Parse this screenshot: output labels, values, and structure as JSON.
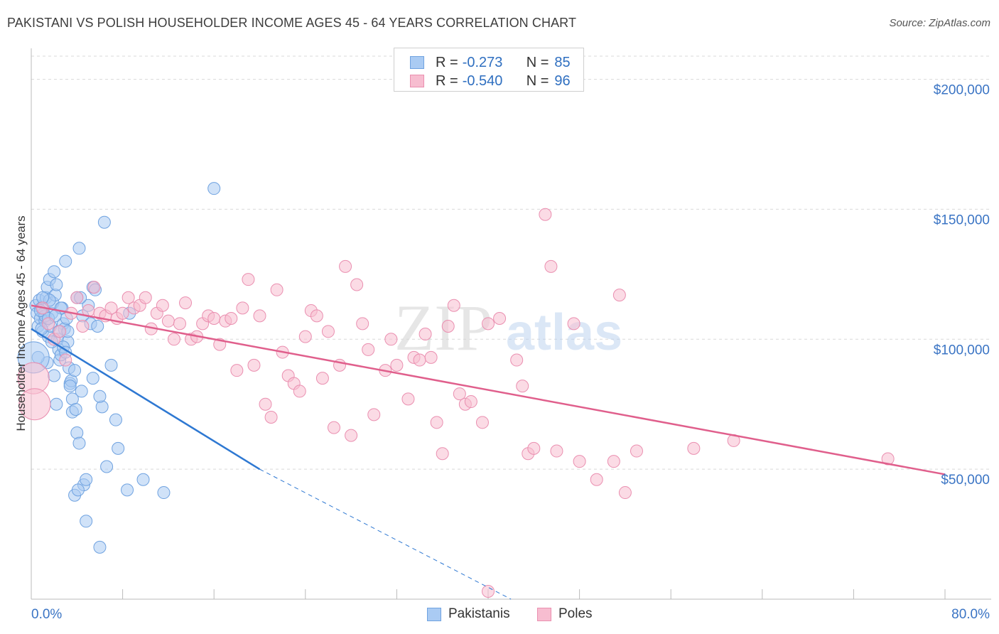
{
  "title": "PAKISTANI VS POLISH HOUSEHOLDER INCOME AGES 45 - 64 YEARS CORRELATION CHART",
  "source": "Source: ZipAtlas.com",
  "watermark": {
    "zip": "ZIP",
    "atlas": "atlas"
  },
  "legend": {
    "rows": [
      {
        "r_label": "R =",
        "r_value": "-0.273",
        "n_label": "N =",
        "n_value": "85",
        "color": "#aacbf3",
        "border": "#6fa2e0"
      },
      {
        "r_label": "R =",
        "r_value": "-0.540",
        "n_label": "N =",
        "n_value": "96",
        "color": "#f7bdd0",
        "border": "#ea8fb0"
      }
    ]
  },
  "bottom_legend": [
    "Pakistanis",
    "Poles"
  ],
  "chart_data": {
    "type": "scatter",
    "xlabel": "",
    "ylabel": "Householder Income Ages 45 - 64 years",
    "xlim": [
      0,
      80
    ],
    "ylim": [
      0,
      210000
    ],
    "x_tick_labels": [
      {
        "value": 0,
        "label": "0.0%"
      },
      {
        "value": 80,
        "label": "80.0%"
      }
    ],
    "y_tick_labels": [
      {
        "value": 50000,
        "label": "$50,000"
      },
      {
        "value": 100000,
        "label": "$100,000"
      },
      {
        "value": 150000,
        "label": "$150,000"
      },
      {
        "value": 200000,
        "label": "$200,000"
      }
    ],
    "series": [
      {
        "name": "Pakistanis",
        "color": "#aacbf3",
        "stroke": "#6fa2e0",
        "trend_color": "#2e78d2",
        "trend": {
          "x0": 0,
          "y0": 104000,
          "x1": 20,
          "y1": 50000,
          "dash_to_x": 42,
          "dash_to_y": 0
        },
        "points": [
          [
            0.4,
            113000
          ],
          [
            0.5,
            110000
          ],
          [
            0.6,
            105000
          ],
          [
            0.7,
            115000
          ],
          [
            0.8,
            108000
          ],
          [
            0.9,
            112000
          ],
          [
            1.0,
            103000
          ],
          [
            1.1,
            110000
          ],
          [
            1.2,
            107000
          ],
          [
            1.3,
            116000
          ],
          [
            1.4,
            120000
          ],
          [
            1.5,
            101000
          ],
          [
            1.6,
            123000
          ],
          [
            1.7,
            105000
          ],
          [
            1.8,
            110000
          ],
          [
            1.9,
            114000
          ],
          [
            2.0,
            126000
          ],
          [
            2.1,
            117000
          ],
          [
            2.2,
            121000
          ],
          [
            2.3,
            100000
          ],
          [
            2.4,
            96000
          ],
          [
            2.5,
            92000
          ],
          [
            2.6,
            94000
          ],
          [
            2.7,
            112000
          ],
          [
            2.8,
            106000
          ],
          [
            2.9,
            104000
          ],
          [
            3.0,
            130000
          ],
          [
            3.1,
            108000
          ],
          [
            3.2,
            99000
          ],
          [
            3.3,
            89000
          ],
          [
            3.4,
            83000
          ],
          [
            3.5,
            84000
          ],
          [
            3.6,
            72000
          ],
          [
            3.8,
            88000
          ],
          [
            4.0,
            116000
          ],
          [
            4.2,
            135000
          ],
          [
            4.4,
            80000
          ],
          [
            4.5,
            109000
          ],
          [
            4.6,
            44000
          ],
          [
            4.8,
            46000
          ],
          [
            5.0,
            113000
          ],
          [
            5.2,
            106000
          ],
          [
            5.4,
            120000
          ],
          [
            5.6,
            119000
          ],
          [
            5.8,
            105000
          ],
          [
            6.0,
            20000
          ],
          [
            6.2,
            74000
          ],
          [
            6.4,
            145000
          ],
          [
            6.6,
            51000
          ],
          [
            7.0,
            90000
          ],
          [
            7.4,
            69000
          ],
          [
            7.6,
            58000
          ],
          [
            8.4,
            42000
          ],
          [
            8.6,
            110000
          ],
          [
            9.8,
            46000
          ],
          [
            11.6,
            41000
          ],
          [
            16.0,
            158000
          ],
          [
            4.0,
            64000
          ],
          [
            4.2,
            60000
          ],
          [
            3.6,
            77000
          ],
          [
            3.8,
            40000
          ],
          [
            4.1,
            42000
          ],
          [
            4.8,
            30000
          ],
          [
            2.8,
            97000
          ],
          [
            2.2,
            75000
          ],
          [
            1.8,
            99000
          ],
          [
            1.2,
            109000
          ],
          [
            0.9,
            104000
          ],
          [
            1.6,
            115000
          ],
          [
            2.4,
            103000
          ],
          [
            3.0,
            95000
          ],
          [
            3.4,
            82000
          ],
          [
            5.4,
            85000
          ],
          [
            6.0,
            78000
          ],
          [
            2.0,
            86000
          ],
          [
            1.4,
            91000
          ],
          [
            2.6,
            112000
          ],
          [
            3.2,
            103000
          ],
          [
            0.8,
            111000
          ],
          [
            1.0,
            116000
          ],
          [
            1.5,
            108000
          ],
          [
            2.1,
            109000
          ],
          [
            3.9,
            73000
          ],
          [
            4.3,
            116000
          ],
          [
            0.6,
            93000
          ]
        ],
        "large_points": [
          [
            0.2,
            93000
          ]
        ]
      },
      {
        "name": "Poles",
        "color": "#f7bdd0",
        "stroke": "#ea8fb0",
        "trend_color": "#e05f8c",
        "trend": {
          "x0": 0,
          "y0": 113000,
          "x1": 80,
          "y1": 48000
        },
        "points": [
          [
            1.0,
            112000
          ],
          [
            1.5,
            106000
          ],
          [
            2.0,
            100000
          ],
          [
            2.5,
            103000
          ],
          [
            3.0,
            92000
          ],
          [
            3.5,
            110000
          ],
          [
            4.0,
            116000
          ],
          [
            4.5,
            105000
          ],
          [
            5.0,
            111000
          ],
          [
            5.5,
            120000
          ],
          [
            6.0,
            110000
          ],
          [
            6.5,
            109000
          ],
          [
            7.0,
            112000
          ],
          [
            7.5,
            108000
          ],
          [
            8.0,
            110000
          ],
          [
            8.5,
            116000
          ],
          [
            9.0,
            112000
          ],
          [
            9.5,
            113000
          ],
          [
            10.0,
            116000
          ],
          [
            10.5,
            104000
          ],
          [
            11.0,
            110000
          ],
          [
            11.5,
            113000
          ],
          [
            12.0,
            107000
          ],
          [
            12.5,
            100000
          ],
          [
            13.0,
            106000
          ],
          [
            13.5,
            114000
          ],
          [
            14.0,
            100000
          ],
          [
            14.5,
            101000
          ],
          [
            15.0,
            106000
          ],
          [
            15.5,
            109000
          ],
          [
            16.0,
            108000
          ],
          [
            16.5,
            98000
          ],
          [
            17.0,
            107000
          ],
          [
            17.5,
            108000
          ],
          [
            18.0,
            88000
          ],
          [
            18.5,
            112000
          ],
          [
            19.0,
            123000
          ],
          [
            19.5,
            90000
          ],
          [
            20.0,
            109000
          ],
          [
            20.5,
            75000
          ],
          [
            21.0,
            70000
          ],
          [
            21.5,
            119000
          ],
          [
            22.0,
            95000
          ],
          [
            22.5,
            86000
          ],
          [
            23.0,
            83000
          ],
          [
            23.5,
            80000
          ],
          [
            24.0,
            101000
          ],
          [
            24.5,
            111000
          ],
          [
            25.0,
            109000
          ],
          [
            25.5,
            85000
          ],
          [
            26.0,
            103000
          ],
          [
            26.5,
            66000
          ],
          [
            27.0,
            90000
          ],
          [
            27.5,
            128000
          ],
          [
            28.0,
            63000
          ],
          [
            28.5,
            121000
          ],
          [
            29.0,
            106000
          ],
          [
            29.5,
            96000
          ],
          [
            30.0,
            71000
          ],
          [
            31.0,
            88000
          ],
          [
            31.5,
            100000
          ],
          [
            32.0,
            90000
          ],
          [
            33.0,
            77000
          ],
          [
            33.5,
            93000
          ],
          [
            34.0,
            92000
          ],
          [
            34.5,
            102000
          ],
          [
            35.0,
            93000
          ],
          [
            35.5,
            68000
          ],
          [
            36.0,
            56000
          ],
          [
            36.5,
            105000
          ],
          [
            37.0,
            113000
          ],
          [
            37.5,
            79000
          ],
          [
            38.0,
            75000
          ],
          [
            38.5,
            76000
          ],
          [
            39.5,
            68000
          ],
          [
            40.0,
            106000
          ],
          [
            41.0,
            108000
          ],
          [
            42.5,
            92000
          ],
          [
            43.0,
            82000
          ],
          [
            43.5,
            56000
          ],
          [
            44.0,
            58000
          ],
          [
            45.0,
            148000
          ],
          [
            45.5,
            128000
          ],
          [
            46.0,
            57000
          ],
          [
            47.5,
            106000
          ],
          [
            48.0,
            53000
          ],
          [
            49.5,
            46000
          ],
          [
            51.5,
            117000
          ],
          [
            51.0,
            53000
          ],
          [
            52.0,
            41000
          ],
          [
            53.0,
            57000
          ],
          [
            58.0,
            58000
          ],
          [
            61.5,
            61000
          ],
          [
            75.0,
            54000
          ],
          [
            40.0,
            3000
          ]
        ],
        "large_points": [
          [
            0.2,
            85000
          ],
          [
            0.3,
            75000
          ]
        ]
      }
    ]
  }
}
